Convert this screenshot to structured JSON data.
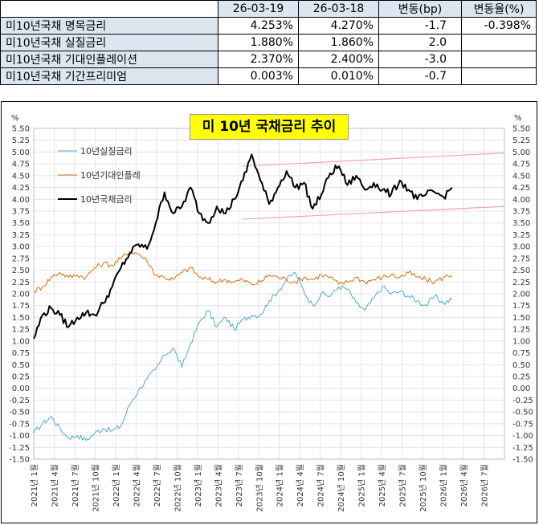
{
  "table": {
    "headers": [
      "",
      "26-03-19",
      "26-03-18",
      "변동(bp)",
      "변동율(%)"
    ],
    "rows": [
      {
        "label": "미10년국채 명목금리",
        "v1": "4.253%",
        "v2": "4.270%",
        "chg": "-1.7",
        "pct": "-0.398%"
      },
      {
        "label": "미10년국채 실질금리",
        "v1": "1.880%",
        "v2": "1.860%",
        "chg": "2.0",
        "pct": ""
      },
      {
        "label": "미10년국채 기대인플레이션",
        "v1": "2.370%",
        "v2": "2.400%",
        "chg": "-3.0",
        "pct": ""
      },
      {
        "label": "미10년국채 기간프리미엄",
        "v1": "0.003%",
        "v2": "0.010%",
        "chg": "-0.7",
        "pct": ""
      }
    ]
  },
  "chart_data": {
    "type": "line",
    "title": "미 10년 국채금리 추이",
    "ylabel_left": "%",
    "ylabel_right": "%",
    "ylim": [
      -1.5,
      5.5
    ],
    "ytick_step": 0.25,
    "x_tick_labels": [
      "2021년 1월",
      "2021년 4월",
      "2021년 7월",
      "2021년 10월",
      "2022년 1월",
      "2022년 4월",
      "2022년 7월",
      "2022년 10월",
      "2023년 1월",
      "2023년 4월",
      "2023년 7월",
      "2023년 10월",
      "2024년 1월",
      "2024년 4월",
      "2024년 7월",
      "2024년 10월",
      "2025년 1월",
      "2025년 4월",
      "2025년 7월",
      "2025년 10월",
      "2026년 1월",
      "2026년 4월",
      "2026년 7월"
    ],
    "grid": true,
    "legend_placement": "top-left",
    "series": [
      {
        "name": "10년실질금리",
        "color": "#4bacc6",
        "points": [
          [
            0,
            -0.95
          ],
          [
            1,
            -0.75
          ],
          [
            2,
            -0.6
          ],
          [
            3,
            -0.85
          ],
          [
            4,
            -1.05
          ],
          [
            5,
            -1.0
          ],
          [
            6,
            -1.1
          ],
          [
            7,
            -0.95
          ],
          [
            8,
            -0.85
          ],
          [
            9,
            -0.9
          ],
          [
            10,
            -0.8
          ],
          [
            11,
            -0.35
          ],
          [
            12,
            -0.05
          ],
          [
            13,
            0.2
          ],
          [
            14,
            0.4
          ],
          [
            15,
            0.7
          ],
          [
            16,
            0.85
          ],
          [
            17,
            0.45
          ],
          [
            18,
            0.95
          ],
          [
            19,
            1.4
          ],
          [
            20,
            1.65
          ],
          [
            21,
            1.3
          ],
          [
            22,
            1.5
          ],
          [
            23,
            1.25
          ],
          [
            24,
            1.45
          ],
          [
            25,
            1.55
          ],
          [
            26,
            1.55
          ],
          [
            27,
            1.85
          ],
          [
            28,
            2.05
          ],
          [
            29,
            2.3
          ],
          [
            30,
            2.45
          ],
          [
            31,
            2.05
          ],
          [
            32,
            1.75
          ],
          [
            33,
            2.0
          ],
          [
            34,
            1.95
          ],
          [
            35,
            2.15
          ],
          [
            36,
            2.1
          ],
          [
            37,
            1.8
          ],
          [
            38,
            1.65
          ],
          [
            39,
            1.9
          ],
          [
            40,
            2.15
          ],
          [
            41,
            2.0
          ],
          [
            42,
            2.05
          ],
          [
            43,
            1.95
          ],
          [
            44,
            1.85
          ],
          [
            45,
            1.75
          ],
          [
            46,
            1.95
          ],
          [
            47,
            1.8
          ],
          [
            48,
            1.88
          ]
        ]
      },
      {
        "name": "10년기대인플레",
        "color": "#e46c0a",
        "points": [
          [
            0,
            2.05
          ],
          [
            1,
            2.15
          ],
          [
            2,
            2.35
          ],
          [
            3,
            2.45
          ],
          [
            4,
            2.35
          ],
          [
            5,
            2.4
          ],
          [
            6,
            2.35
          ],
          [
            7,
            2.55
          ],
          [
            8,
            2.65
          ],
          [
            9,
            2.6
          ],
          [
            10,
            2.75
          ],
          [
            11,
            2.9
          ],
          [
            12,
            2.85
          ],
          [
            13,
            2.7
          ],
          [
            14,
            2.4
          ],
          [
            15,
            2.35
          ],
          [
            16,
            2.3
          ],
          [
            17,
            2.45
          ],
          [
            18,
            2.55
          ],
          [
            19,
            2.35
          ],
          [
            20,
            2.3
          ],
          [
            21,
            2.25
          ],
          [
            22,
            2.3
          ],
          [
            23,
            2.25
          ],
          [
            24,
            2.3
          ],
          [
            25,
            2.2
          ],
          [
            26,
            2.25
          ],
          [
            27,
            2.4
          ],
          [
            28,
            2.35
          ],
          [
            29,
            2.3
          ],
          [
            30,
            2.25
          ],
          [
            31,
            2.35
          ],
          [
            32,
            2.3
          ],
          [
            33,
            2.4
          ],
          [
            34,
            2.35
          ],
          [
            35,
            2.2
          ],
          [
            36,
            2.25
          ],
          [
            37,
            2.35
          ],
          [
            38,
            2.25
          ],
          [
            39,
            2.3
          ],
          [
            40,
            2.35
          ],
          [
            41,
            2.4
          ],
          [
            42,
            2.35
          ],
          [
            43,
            2.45
          ],
          [
            44,
            2.35
          ],
          [
            45,
            2.3
          ],
          [
            46,
            2.25
          ],
          [
            47,
            2.35
          ],
          [
            48,
            2.4
          ]
        ]
      },
      {
        "name": "10년국채금리",
        "color": "#000000",
        "points": [
          [
            0,
            1.05
          ],
          [
            1,
            1.55
          ],
          [
            2,
            1.7
          ],
          [
            3,
            1.55
          ],
          [
            4,
            1.3
          ],
          [
            5,
            1.5
          ],
          [
            6,
            1.6
          ],
          [
            7,
            1.55
          ],
          [
            8,
            1.8
          ],
          [
            9,
            2.15
          ],
          [
            10,
            2.55
          ],
          [
            11,
            2.85
          ],
          [
            12,
            3.05
          ],
          [
            13,
            2.95
          ],
          [
            14,
            3.5
          ],
          [
            15,
            4.15
          ],
          [
            16,
            3.7
          ],
          [
            17,
            3.85
          ],
          [
            18,
            4.25
          ],
          [
            19,
            3.7
          ],
          [
            20,
            3.5
          ],
          [
            21,
            3.85
          ],
          [
            22,
            3.7
          ],
          [
            23,
            4.0
          ],
          [
            24,
            4.4
          ],
          [
            25,
            4.95
          ],
          [
            26,
            4.4
          ],
          [
            27,
            3.9
          ],
          [
            28,
            4.25
          ],
          [
            29,
            4.6
          ],
          [
            30,
            4.25
          ],
          [
            31,
            4.35
          ],
          [
            32,
            3.8
          ],
          [
            33,
            4.1
          ],
          [
            34,
            4.55
          ],
          [
            35,
            4.7
          ],
          [
            36,
            4.3
          ],
          [
            37,
            4.5
          ],
          [
            38,
            4.2
          ],
          [
            39,
            4.35
          ],
          [
            40,
            4.2
          ],
          [
            41,
            4.1
          ],
          [
            42,
            4.4
          ],
          [
            43,
            4.2
          ],
          [
            44,
            4.0
          ],
          [
            45,
            4.1
          ],
          [
            46,
            4.15
          ],
          [
            47,
            4.05
          ],
          [
            48,
            4.25
          ]
        ]
      }
    ],
    "trend_lines": [
      {
        "color": "#f4a6a6",
        "from": [
          24,
          4.7
        ],
        "to": [
          54,
          4.98
        ]
      },
      {
        "color": "#f4a6a6",
        "from": [
          24,
          3.58
        ],
        "to": [
          54,
          3.85
        ]
      }
    ]
  }
}
